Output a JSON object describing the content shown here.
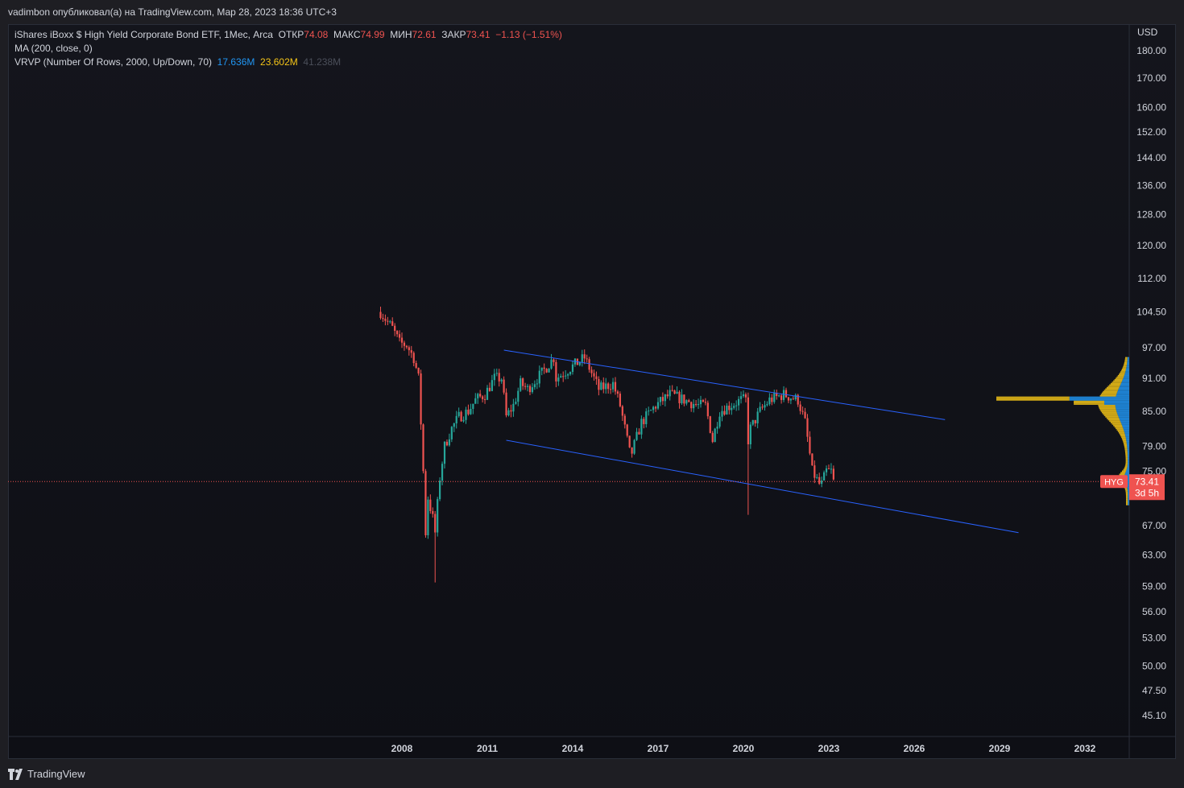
{
  "header": {
    "byline": "vadimbon опубликовал(а) на TradingView.com, Мар 28, 2023 18:36 UTC+3"
  },
  "legend": {
    "symbol": "iShares iBoxx $ High Yield Corporate Bond ETF, 1Мес, Arca",
    "open_label": "ОТКР",
    "open_value": "74.08",
    "high_label": "МАКС",
    "high_value": "74.99",
    "low_label": "МИН",
    "low_value": "72.61",
    "close_label": "ЗАКР",
    "close_value": "73.41",
    "change": "−1.13 (−1.51%)",
    "ma": "MA (200, close, 0)",
    "vrvp": "VRVP (Number Of Rows, 2000, Up/Down, 70)",
    "vrvp_up": "17.636M",
    "vrvp_down": "23.602M",
    "vrvp_total": "41.238M"
  },
  "price_label": {
    "ticker": "HYG",
    "price": "73.41",
    "countdown": "3d 5h"
  },
  "brand": {
    "name": "TradingView"
  },
  "chart_data": {
    "type": "candlestick",
    "log_scale": true,
    "axis_currency": "USD",
    "y_ticks": [
      "180.00",
      "170.00",
      "160.00",
      "152.00",
      "144.00",
      "136.00",
      "128.00",
      "120.00",
      "112.00",
      "104.50",
      "97.00",
      "91.00",
      "85.00",
      "79.00",
      "75.00",
      "67.00",
      "63.00",
      "59.00",
      "56.00",
      "53.00",
      "50.00",
      "47.50",
      "45.10"
    ],
    "x_ticks": [
      "2008",
      "2011",
      "2014",
      "2017",
      "2020",
      "2023",
      "2026",
      "2029",
      "2032"
    ],
    "colors": {
      "up": "#26a69a",
      "down": "#ef5350",
      "trendline": "#2962ff",
      "volume_up": "#2196f3",
      "volume_down": "#f5c518"
    },
    "close_path": [
      [
        "2007-04",
        104.5
      ],
      [
        "2007-06",
        103
      ],
      [
        "2007-09",
        101
      ],
      [
        "2007-12",
        98
      ],
      [
        "2008-03",
        97.5
      ],
      [
        "2008-06",
        95
      ],
      [
        "2008-08",
        91
      ],
      [
        "2008-10",
        75
      ],
      [
        "2008-11",
        66
      ],
      [
        "2008-12",
        71
      ],
      [
        "2009-02",
        68
      ],
      [
        "2009-03",
        66
      ],
      [
        "2009-05",
        74
      ],
      [
        "2009-07",
        79
      ],
      [
        "2009-10",
        82
      ],
      [
        "2010-01",
        84
      ],
      [
        "2010-05",
        85
      ],
      [
        "2010-08",
        87
      ],
      [
        "2010-12",
        88
      ],
      [
        "2011-04",
        91
      ],
      [
        "2011-07",
        91
      ],
      [
        "2011-09",
        84
      ],
      [
        "2011-12",
        86
      ],
      [
        "2012-03",
        90
      ],
      [
        "2012-06",
        89
      ],
      [
        "2012-12",
        92
      ],
      [
        "2013-05",
        95
      ],
      [
        "2013-06",
        91
      ],
      [
        "2013-12",
        93
      ],
      [
        "2014-06",
        95
      ],
      [
        "2014-09",
        92
      ],
      [
        "2014-12",
        89
      ],
      [
        "2015-06",
        90
      ],
      [
        "2015-09",
        86
      ],
      [
        "2016-01",
        78
      ],
      [
        "2016-02",
        78
      ],
      [
        "2016-06",
        83
      ],
      [
        "2016-12",
        86
      ],
      [
        "2017-06",
        88
      ],
      [
        "2017-12",
        87
      ],
      [
        "2018-06",
        86
      ],
      [
        "2018-09",
        86
      ],
      [
        "2018-12",
        80
      ],
      [
        "2019-03",
        85
      ],
      [
        "2019-12",
        87
      ],
      [
        "2020-02",
        87
      ],
      [
        "2020-03",
        80
      ],
      [
        "2020-04",
        82
      ],
      [
        "2020-08",
        85
      ],
      [
        "2020-12",
        87
      ],
      [
        "2021-06",
        88
      ],
      [
        "2021-12",
        87
      ],
      [
        "2022-03",
        83
      ],
      [
        "2022-06",
        75
      ],
      [
        "2022-09",
        73
      ],
      [
        "2022-10",
        73
      ],
      [
        "2022-12",
        75
      ],
      [
        "2023-02",
        75
      ],
      [
        "2023-03",
        73.41
      ]
    ],
    "wicks": [
      {
        "date": "2009-03",
        "low": 59.5
      },
      {
        "date": "2020-03",
        "low": 68.5
      }
    ],
    "trendlines": [
      {
        "from": [
          "2011-08",
          96.5
        ],
        "to": [
          "2027-02",
          83.5
        ]
      },
      {
        "from": [
          "2011-09",
          80
        ],
        "to": [
          "2029-09",
          66
        ]
      }
    ],
    "last_close": 73.41
  }
}
